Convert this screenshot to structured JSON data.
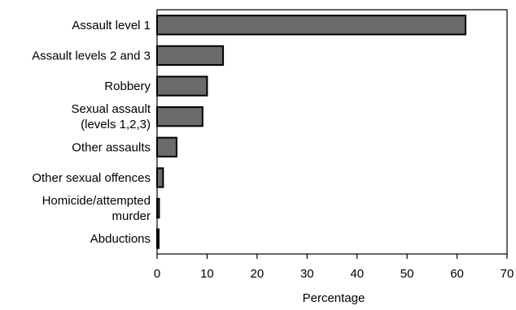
{
  "chart_data": {
    "type": "bar",
    "orientation": "horizontal",
    "categories": [
      "Assault level 1",
      "Assault levels 2 and 3",
      "Robbery",
      "Sexual assault (levels 1,2,3)",
      "Other assaults",
      "Other sexual offences",
      "Homicide/attempted murder",
      "Abductions"
    ],
    "category_label_lines": [
      [
        "Assault level 1"
      ],
      [
        "Assault levels 2 and 3"
      ],
      [
        "Robbery"
      ],
      [
        "Sexual assault",
        "(levels 1,2,3)"
      ],
      [
        "Other assaults"
      ],
      [
        "Other sexual offences"
      ],
      [
        "Homicide/attempted",
        "murder"
      ],
      [
        "Abductions"
      ]
    ],
    "values": [
      61.7,
      13.2,
      10.0,
      9.1,
      3.9,
      1.2,
      0.4,
      0.2
    ],
    "xlabel": "Percentage",
    "ylabel": "",
    "title": "",
    "xlim": [
      0,
      70
    ],
    "xticks": [
      0,
      10,
      20,
      30,
      40,
      50,
      60,
      70
    ],
    "grid": false,
    "legend": "none",
    "bar_color": "#6b6b6b",
    "bar_edge_color": "#000000"
  }
}
